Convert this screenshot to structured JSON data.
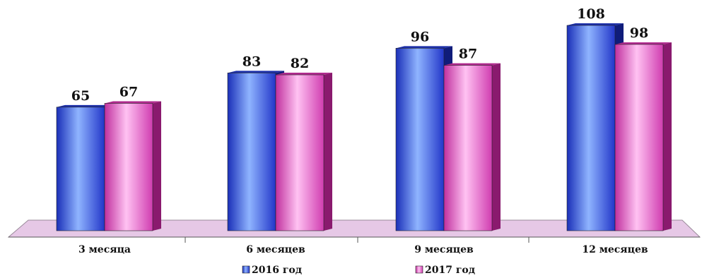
{
  "chart_data": {
    "type": "bar",
    "categories": [
      "3 месяца",
      "6 месяцев",
      "9 месяцев",
      "12 месяцев"
    ],
    "series": [
      {
        "name": "2016 год",
        "values": [
          65,
          83,
          96,
          108
        ],
        "color": "#3a5cf0"
      },
      {
        "name": "2017 год",
        "values": [
          67,
          82,
          87,
          98
        ],
        "color": "#f05ad0"
      }
    ],
    "ylim": [
      0,
      108
    ],
    "grid": false,
    "legend": "bottom",
    "data_labels": true,
    "floor_color": "#e6c8e6"
  }
}
